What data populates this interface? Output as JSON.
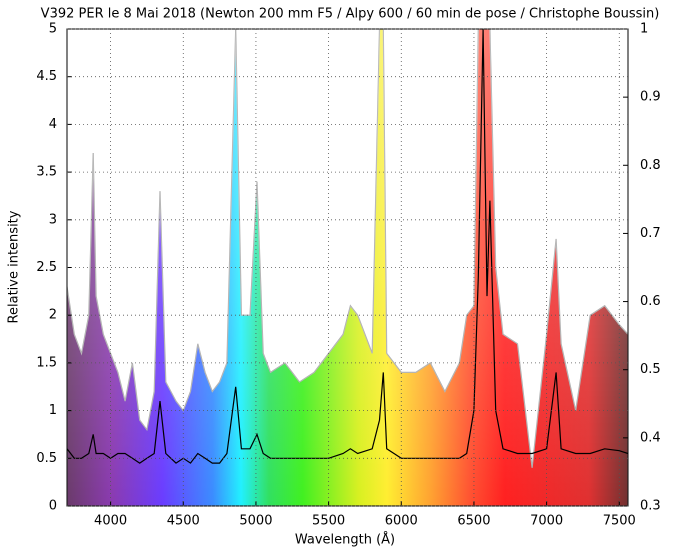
{
  "chart_data": {
    "type": "line",
    "title": "V392 PER le 8 Mai 2018 (Newton 200 mm F5 / Alpy 600 / 60 min de pose / Christophe Boussin)",
    "x_label": "Wavelength (Å)",
    "y_label": "Relative intensity",
    "x": [
      3700,
      3750,
      3800,
      3850,
      3880,
      3900,
      3950,
      4000,
      4050,
      4100,
      4150,
      4200,
      4250,
      4300,
      4340,
      4380,
      4450,
      4500,
      4550,
      4600,
      4650,
      4700,
      4750,
      4800,
      4861,
      4900,
      4959,
      5007,
      5050,
      5100,
      5200,
      5300,
      5400,
      5500,
      5600,
      5650,
      5700,
      5800,
      5850,
      5876,
      5900,
      5950,
      6000,
      6100,
      6200,
      6300,
      6400,
      6450,
      6500,
      6530,
      6563,
      6590,
      6610,
      6650,
      6700,
      6800,
      6900,
      7000,
      7065,
      7100,
      7200,
      7300,
      7400,
      7500,
      7560
    ],
    "series": [
      {
        "color": "#b0b0b0",
        "fill": "spectrum",
        "values": [
          2.3,
          1.8,
          1.6,
          2.0,
          3.7,
          2.2,
          1.8,
          1.6,
          1.4,
          1.1,
          1.5,
          0.9,
          0.8,
          1.2,
          3.3,
          1.3,
          1.1,
          1.0,
          1.2,
          1.7,
          1.4,
          1.2,
          1.3,
          1.5,
          5.0,
          2.0,
          2.0,
          3.4,
          1.6,
          1.4,
          1.5,
          1.3,
          1.4,
          1.6,
          1.8,
          2.1,
          2.0,
          1.6,
          5.0,
          5.0,
          1.6,
          1.5,
          1.4,
          1.4,
          1.5,
          1.2,
          1.5,
          2.0,
          2.1,
          5.0,
          5.0,
          5.0,
          5.0,
          2.5,
          1.8,
          1.7,
          0.4,
          1.8,
          2.8,
          1.7,
          1.0,
          2.0,
          2.1,
          1.9,
          1.8
        ]
      },
      {
        "color": "#000000",
        "values": [
          0.6,
          0.5,
          0.5,
          0.55,
          0.75,
          0.55,
          0.55,
          0.5,
          0.55,
          0.55,
          0.5,
          0.45,
          0.5,
          0.55,
          1.1,
          0.55,
          0.45,
          0.5,
          0.45,
          0.55,
          0.5,
          0.45,
          0.45,
          0.55,
          1.25,
          0.6,
          0.6,
          0.75,
          0.55,
          0.5,
          0.5,
          0.5,
          0.5,
          0.5,
          0.55,
          0.6,
          0.55,
          0.6,
          0.9,
          1.4,
          0.6,
          0.55,
          0.5,
          0.5,
          0.5,
          0.5,
          0.5,
          0.55,
          1.0,
          2.4,
          5.0,
          2.2,
          3.2,
          1.0,
          0.6,
          0.55,
          0.55,
          0.6,
          1.4,
          0.6,
          0.55,
          0.55,
          0.6,
          0.58,
          0.55
        ]
      }
    ],
    "xlim": [
      3700,
      7560
    ],
    "xticks": [
      4000,
      4500,
      5000,
      5500,
      6000,
      6500,
      7000,
      7500
    ],
    "ylim": [
      0,
      5
    ],
    "yticks": [
      0,
      0.5,
      1,
      1.5,
      2,
      2.5,
      3,
      3.5,
      4,
      4.5,
      5
    ],
    "y2lim": [
      0.3,
      1
    ],
    "y2ticks": [
      0.3,
      0.4,
      0.5,
      0.6,
      0.7,
      0.8,
      0.9,
      1
    ],
    "grid": true
  }
}
